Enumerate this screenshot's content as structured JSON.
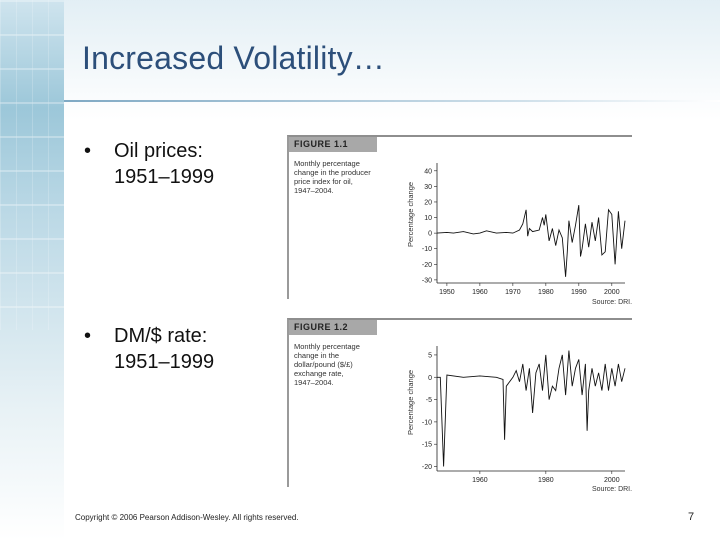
{
  "slide": {
    "title": "Increased Volatility…",
    "bullets": [
      {
        "marker": "•",
        "line1": "Oil prices:",
        "line2": "1951–1999"
      },
      {
        "marker": "•",
        "line1": "DM/$ rate:",
        "line2": "1951–1999"
      }
    ],
    "footer": "Copyright © 2006 Pearson Addison-Wesley. All rights reserved.",
    "page_number": "7"
  },
  "figures": [
    {
      "heading": "FIGURE 1.1",
      "caption_lines": [
        "Monthly percentage",
        "change in the producer",
        "price index for oil,",
        "1947–2004."
      ],
      "ylabel": "Percentage change",
      "source": "Source: DRI."
    },
    {
      "heading": "FIGURE 1.2",
      "caption_lines": [
        "Monthly percentage",
        "change in the",
        "dollar/pound ($/£)",
        "exchange rate,",
        "1947–2004."
      ],
      "ylabel": "Percentage change",
      "source": "Source: DRI."
    }
  ],
  "chart_data": [
    {
      "type": "line",
      "title": "",
      "xlabel": "",
      "ylabel": "Percentage change",
      "x_ticks": [
        "1950",
        "1960",
        "1970",
        "1980",
        "1990",
        "2000"
      ],
      "y_ticks": [
        40,
        30,
        20,
        10,
        0,
        -10,
        -20,
        -30
      ],
      "xlim": [
        1947,
        2004
      ],
      "ylim": [
        -32,
        45
      ],
      "series": [
        {
          "x": [
            1947,
            1950,
            1952,
            1955,
            1958,
            1960,
            1962,
            1965,
            1968,
            1970,
            1972,
            1973,
            1974,
            1974.5,
            1975,
            1976,
            1978,
            1979,
            1979.5,
            1980,
            1981,
            1982,
            1983,
            1984,
            1985,
            1986,
            1986.5,
            1987,
            1988,
            1989,
            1990,
            1990.5,
            1991,
            1992,
            1993,
            1994,
            1995,
            1996,
            1997,
            1998,
            1999,
            2000,
            2001,
            2002,
            2003,
            2004
          ],
          "y": [
            0,
            0.5,
            0,
            1,
            -0.5,
            0,
            1.5,
            0,
            0.5,
            0,
            2,
            6,
            15,
            -2,
            3,
            1,
            2,
            10,
            5,
            12,
            -5,
            3,
            -8,
            2,
            -3,
            -28,
            -12,
            8,
            -6,
            5,
            18,
            -15,
            -10,
            6,
            -9,
            7,
            -5,
            10,
            -14,
            -12,
            15,
            12,
            -20,
            14,
            -10,
            8
          ]
        }
      ]
    },
    {
      "type": "line",
      "title": "",
      "xlabel": "",
      "ylabel": "Percentage change",
      "x_ticks": [
        "1960",
        "1980",
        "2000"
      ],
      "y_ticks": [
        5,
        0,
        -5,
        -10,
        -15,
        -20
      ],
      "xlim": [
        1947,
        2004
      ],
      "ylim": [
        -21,
        7
      ],
      "series": [
        {
          "x": [
            1947,
            1948,
            1949,
            1950,
            1955,
            1960,
            1965,
            1967,
            1967.5,
            1968,
            1970,
            1971,
            1972,
            1973,
            1974,
            1975,
            1976,
            1977,
            1978,
            1979,
            1980,
            1981,
            1982,
            1983,
            1984,
            1985,
            1986,
            1987,
            1988,
            1989,
            1990,
            1991,
            1992,
            1992.5,
            1993,
            1994,
            1995,
            1996,
            1997,
            1998,
            1999,
            2000,
            2001,
            2002,
            2003,
            2004
          ],
          "y": [
            0,
            0,
            -20,
            0.5,
            0,
            0.3,
            0,
            -0.5,
            -14,
            -2,
            0,
            1.5,
            -1,
            3,
            -3,
            2,
            -8,
            1,
            3,
            -3,
            5,
            -5,
            -2,
            -3,
            2,
            5,
            -4,
            6,
            -2,
            2,
            4,
            -4,
            3,
            -12,
            -3,
            2,
            -2,
            1,
            -3,
            3,
            -3,
            2,
            -2,
            3,
            -1,
            2
          ]
        }
      ]
    }
  ]
}
